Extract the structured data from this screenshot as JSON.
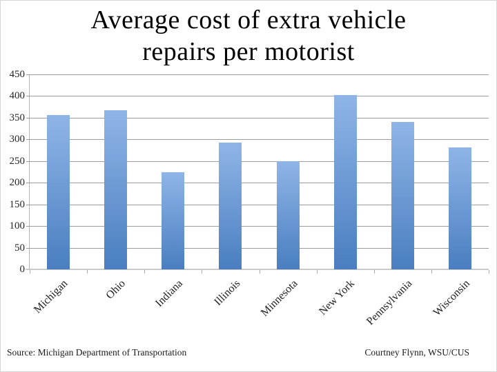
{
  "slide": {
    "title_lines": [
      "Average cost of extra vehicle",
      "repairs per motorist"
    ],
    "footer_left": "Source: Michigan Department of Transportation",
    "footer_right": "Courtney Flynn, WSU/CUS"
  },
  "chart_data": {
    "type": "bar",
    "title": "Average cost of extra vehicle repairs per motorist",
    "categories": [
      "Michigan",
      "Ohio",
      "Indiana",
      "Illinois",
      "Minnesota",
      "New York",
      "Pennsylvania",
      "Wisconsin"
    ],
    "values": [
      357,
      367,
      225,
      292,
      250,
      403,
      341,
      281
    ],
    "xlabel": "",
    "ylabel": "",
    "ylim": [
      0,
      450
    ],
    "ytick_step": 50,
    "yticks": [
      0,
      50,
      100,
      150,
      200,
      250,
      300,
      350,
      400,
      450
    ],
    "grid": true,
    "legend": false,
    "bar_color_top": "#8fb5e7",
    "bar_color_bottom": "#4a7ec0",
    "gridline_color": "#9b9b9b",
    "axis_color": "#c9c9c9"
  }
}
